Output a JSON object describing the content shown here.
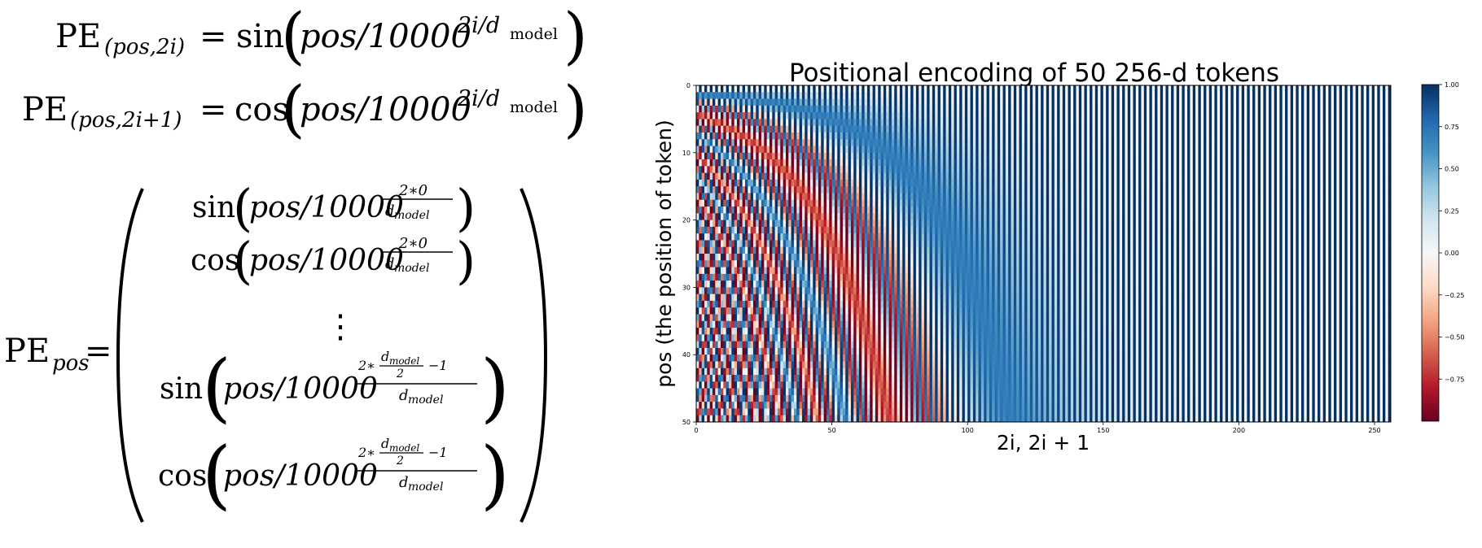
{
  "equations": {
    "line1": {
      "lhs": "PE",
      "lhs_sub": "(pos,2i)",
      "eq": "=",
      "func": "sin",
      "arg": "pos/10000",
      "exp": "2i/d",
      "exp_sub": "model"
    },
    "line2": {
      "lhs": "PE",
      "lhs_sub": "(pos,2i+1)",
      "eq": "=",
      "func": "cos",
      "arg": "pos/10000",
      "exp": "2i/d",
      "exp_sub": "model"
    },
    "vector": {
      "lhs": "PE",
      "lhs_sub": "pos",
      "eq": "=",
      "rows": [
        {
          "func": "sin",
          "arg": "pos/10000",
          "exp_num": "2∗0",
          "exp_den": "d",
          "exp_den_sub": "model"
        },
        {
          "func": "cos",
          "arg": "pos/10000",
          "exp_num": "2∗0",
          "exp_den": "d",
          "exp_den_sub": "model"
        },
        {
          "func": "sin",
          "arg": "pos/10000",
          "exp_num_pre": "2∗",
          "exp_num_frac_num": "d",
          "exp_num_frac_num_sub": "model",
          "exp_num_frac_den": "2",
          "exp_num_post": "−1",
          "exp_den": "d",
          "exp_den_sub": "model"
        },
        {
          "func": "cos",
          "arg": "pos/10000",
          "exp_num_pre": "2∗",
          "exp_num_frac_num": "d",
          "exp_num_frac_num_sub": "model",
          "exp_num_frac_den": "2",
          "exp_num_post": "−1",
          "exp_den": "d",
          "exp_den_sub": "model"
        }
      ],
      "vdots": "⋮"
    }
  },
  "chart_data": {
    "type": "heatmap",
    "title": "Positional encoding of 50 256-d tokens",
    "xlabel": "2i, 2i + 1",
    "ylabel": "pos (the position of token)",
    "x_range": [
      0,
      256
    ],
    "y_range": [
      0,
      50
    ],
    "x_ticks": [
      "0",
      "50",
      "100",
      "150",
      "200",
      "250"
    ],
    "y_ticks": [
      "0",
      "10",
      "20",
      "30",
      "40",
      "50"
    ],
    "colormap": "RdBu",
    "colorbar_range": [
      -1.0,
      1.0
    ],
    "colorbar_ticks": [
      "1.00",
      "0.75",
      "0.50",
      "0.25",
      "0.00",
      "−0.25",
      "−0.50",
      "−0.75"
    ],
    "num_positions": 50,
    "d_model": 256,
    "formula_base": 10000
  },
  "colors": {
    "red_dark": "#67001f",
    "red": "#b2182b",
    "red_mid": "#d6604d",
    "red_light": "#f4a582",
    "pink_light": "#fddbc7",
    "white": "#f7f7f7",
    "blue_light": "#d1e5f0",
    "blue_lightmid": "#92c5de",
    "blue_mid": "#4393c3",
    "blue": "#2166ac",
    "blue_dark": "#053061"
  }
}
